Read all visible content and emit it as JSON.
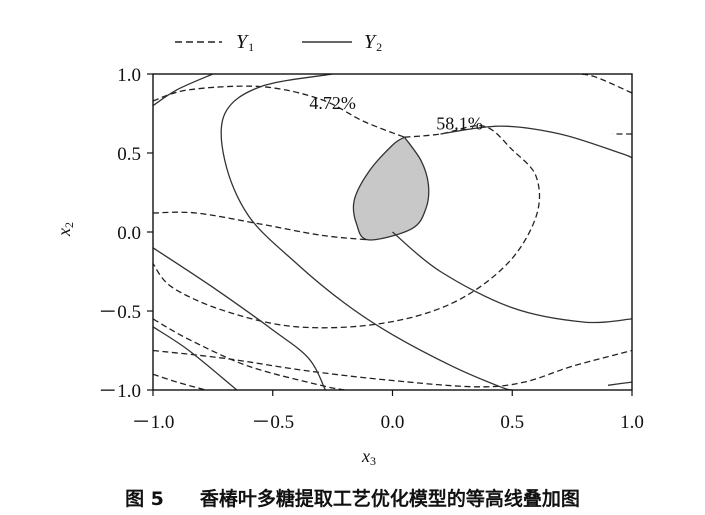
{
  "chart_data": {
    "type": "contour",
    "xlabel": "x",
    "xlabel_sub": "3",
    "ylabel": "x",
    "ylabel_sub": "2",
    "xlim": [
      -1.0,
      1.0
    ],
    "ylim": [
      -1.0,
      1.0
    ],
    "xticks": [
      -1.0,
      -0.5,
      0.0,
      0.5,
      1.0
    ],
    "yticks": [
      -1.0,
      -0.5,
      0.0,
      0.5,
      1.0
    ],
    "xtick_labels": [
      "－1.0",
      "－0.5",
      "0.0",
      "0.5",
      "1.0"
    ],
    "ytick_labels": [
      "－1.0",
      "－0.5",
      "0.0",
      "0.5",
      "1.0"
    ],
    "grid": false,
    "legend_position": "top",
    "series": [
      {
        "name": "Y",
        "sub": "1",
        "style": "dashed",
        "color": "#222222",
        "contours": [
          [
            [
              -1.0,
              0.83
            ],
            [
              -0.85,
              0.9
            ],
            [
              -0.55,
              0.92
            ],
            [
              -0.3,
              0.84
            ],
            [
              -0.12,
              0.7
            ],
            [
              0.05,
              0.6
            ]
          ],
          [
            [
              0.05,
              0.6
            ],
            [
              0.2,
              0.62
            ],
            [
              0.38,
              0.67
            ],
            [
              0.5,
              0.52
            ],
            [
              0.6,
              0.35
            ],
            [
              0.6,
              0.1
            ],
            [
              0.48,
              -0.2
            ],
            [
              0.25,
              -0.45
            ],
            [
              -0.05,
              -0.58
            ],
            [
              -0.4,
              -0.6
            ],
            [
              -0.7,
              -0.5
            ],
            [
              -0.92,
              -0.35
            ],
            [
              -1.0,
              -0.2
            ]
          ],
          [
            [
              -0.2,
              -1.0
            ],
            [
              -0.3,
              -0.97
            ],
            [
              -0.6,
              -0.85
            ],
            [
              -0.85,
              -0.68
            ],
            [
              -1.0,
              -0.55
            ]
          ],
          [
            [
              1.0,
              0.88
            ],
            [
              0.85,
              0.98
            ],
            [
              0.78,
              1.0
            ]
          ],
          [
            [
              1.0,
              0.62
            ],
            [
              0.92,
              0.62
            ]
          ],
          [
            [
              -1.0,
              0.12
            ],
            [
              -0.82,
              0.12
            ],
            [
              -0.55,
              0.05
            ],
            [
              -0.3,
              -0.02
            ],
            [
              -0.1,
              -0.05
            ]
          ],
          [
            [
              -1.0,
              -0.75
            ],
            [
              -0.7,
              -0.8
            ],
            [
              -0.35,
              -0.88
            ],
            [
              0.0,
              -0.94
            ],
            [
              0.35,
              -0.98
            ],
            [
              0.55,
              -0.95
            ],
            [
              0.75,
              -0.85
            ],
            [
              1.0,
              -0.75
            ]
          ],
          [
            [
              -1.0,
              -0.9
            ],
            [
              -0.9,
              -0.95
            ],
            [
              -0.78,
              -1.0
            ]
          ]
        ]
      },
      {
        "name": "Y",
        "sub": "2",
        "style": "solid",
        "color": "#333333",
        "contours": [
          [
            [
              -1.0,
              0.8
            ],
            [
              -0.9,
              0.9
            ],
            [
              -0.75,
              1.0
            ]
          ],
          [
            [
              -0.25,
              1.0
            ],
            [
              -0.55,
              0.92
            ],
            [
              -0.7,
              0.75
            ],
            [
              -0.7,
              0.45
            ],
            [
              -0.6,
              0.1
            ],
            [
              -0.4,
              -0.2
            ],
            [
              -0.2,
              -0.45
            ],
            [
              0.0,
              -0.65
            ],
            [
              0.25,
              -0.85
            ],
            [
              0.45,
              -0.98
            ],
            [
              0.5,
              -1.0
            ]
          ],
          [
            [
              0.0,
              0.0
            ],
            [
              0.2,
              -0.25
            ],
            [
              0.5,
              -0.48
            ],
            [
              0.8,
              -0.57
            ],
            [
              1.0,
              -0.55
            ]
          ],
          [
            [
              0.2,
              0.62
            ],
            [
              0.45,
              0.67
            ],
            [
              0.7,
              0.62
            ],
            [
              0.95,
              0.5
            ],
            [
              1.0,
              0.47
            ]
          ],
          [
            [
              -1.0,
              -0.1
            ],
            [
              -0.75,
              -0.35
            ],
            [
              -0.5,
              -0.62
            ],
            [
              -0.35,
              -0.8
            ],
            [
              -0.28,
              -1.0
            ]
          ],
          [
            [
              -1.0,
              -0.6
            ],
            [
              -0.85,
              -0.75
            ],
            [
              -0.65,
              -1.0
            ]
          ],
          [
            [
              1.0,
              -0.95
            ],
            [
              0.9,
              -0.97
            ]
          ]
        ]
      }
    ],
    "optimal_region": {
      "color": "#c8c8c8",
      "points": [
        [
          0.05,
          0.6
        ],
        [
          0.12,
          0.45
        ],
        [
          0.15,
          0.3
        ],
        [
          0.14,
          0.15
        ],
        [
          0.08,
          0.02
        ],
        [
          -0.1,
          -0.05
        ],
        [
          -0.15,
          0.05
        ],
        [
          -0.16,
          0.2
        ],
        [
          -0.1,
          0.38
        ],
        [
          0.0,
          0.55
        ]
      ]
    },
    "contour_labels": [
      {
        "text": "4.72%",
        "x": -0.25,
        "y": 0.78
      },
      {
        "text": "58.1%",
        "x": 0.28,
        "y": 0.65
      }
    ]
  },
  "caption": {
    "number": "图 5",
    "text": "香椿叶多糖提取工艺优化模型的等高线叠加图"
  }
}
